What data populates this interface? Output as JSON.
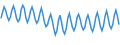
{
  "chart_data": {
    "type": "line",
    "color": "#3a8fd6",
    "ylim": [
      0,
      100
    ],
    "tick_labels": false,
    "grid": false,
    "values": [
      60,
      75,
      88,
      80,
      65,
      55,
      62,
      80,
      90,
      78,
      60,
      52,
      58,
      82,
      92,
      85,
      62,
      50,
      60,
      78,
      88,
      76,
      58,
      48,
      55,
      72,
      85,
      70,
      50,
      40,
      45,
      60,
      70,
      55,
      35,
      20,
      30,
      55,
      68,
      50,
      30,
      22,
      35,
      60,
      72,
      55,
      38,
      30,
      40,
      62,
      70,
      58,
      40,
      32,
      38,
      58,
      68,
      55,
      36,
      28,
      40,
      62,
      74,
      60,
      40,
      30,
      42,
      65,
      78,
      62,
      42,
      35,
      45,
      68,
      80,
      65,
      45
    ]
  }
}
